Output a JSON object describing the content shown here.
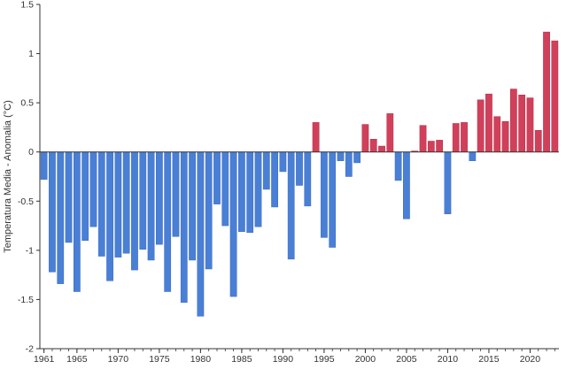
{
  "chart_data": {
    "type": "bar",
    "title": "",
    "xlabel": "",
    "ylabel": "Temperatura Media - Anomalia (°C)",
    "ylim": [
      -2,
      1.5
    ],
    "yticks": [
      -2,
      -1.5,
      -1,
      -0.5,
      0,
      0.5,
      1,
      1.5
    ],
    "ytick_labels": [
      "-2",
      "-1.5",
      "-1",
      "-0.5",
      "0",
      "0.5",
      "1",
      "1.5"
    ],
    "xlim": [
      1960.5,
      2023.5
    ],
    "xticks": [
      1961,
      1965,
      1970,
      1975,
      1980,
      1985,
      1990,
      1995,
      2000,
      2005,
      2010,
      2015,
      2020
    ],
    "xtick_labels": [
      "1961",
      "1965",
      "1970",
      "1975",
      "1980",
      "1985",
      "1990",
      "1995",
      "2000",
      "2005",
      "2010",
      "2015",
      "2020"
    ],
    "grid": false,
    "legend": "none",
    "colors": {
      "positive": "#d1405a",
      "negative": "#4a7fd6",
      "axis": "#333333"
    },
    "x": [
      1961,
      1962,
      1963,
      1964,
      1965,
      1966,
      1967,
      1968,
      1969,
      1970,
      1971,
      1972,
      1973,
      1974,
      1975,
      1976,
      1977,
      1978,
      1979,
      1980,
      1981,
      1982,
      1983,
      1984,
      1985,
      1986,
      1987,
      1988,
      1989,
      1990,
      1991,
      1992,
      1993,
      1994,
      1995,
      1996,
      1997,
      1998,
      1999,
      2000,
      2001,
      2002,
      2003,
      2004,
      2005,
      2006,
      2007,
      2008,
      2009,
      2010,
      2011,
      2012,
      2013,
      2014,
      2015,
      2016,
      2017,
      2018,
      2019,
      2020,
      2021,
      2022,
      2023
    ],
    "values": [
      -0.28,
      -1.22,
      -1.34,
      -0.92,
      -1.42,
      -0.9,
      -0.76,
      -1.06,
      -1.31,
      -1.07,
      -1.03,
      -1.2,
      -0.99,
      -1.1,
      -0.94,
      -1.42,
      -0.86,
      -1.53,
      -1.1,
      -1.67,
      -1.19,
      -0.53,
      -0.75,
      -1.47,
      -0.81,
      -0.82,
      -0.76,
      -0.38,
      -0.56,
      -0.2,
      -1.09,
      -0.34,
      -0.55,
      0.3,
      -0.87,
      -0.97,
      -0.09,
      -0.25,
      -0.11,
      0.28,
      0.13,
      0.06,
      0.39,
      -0.29,
      -0.68,
      0.01,
      0.27,
      0.11,
      0.12,
      -0.63,
      0.29,
      0.3,
      -0.09,
      0.53,
      0.59,
      0.36,
      0.31,
      0.64,
      0.58,
      0.55,
      0.22,
      1.22,
      1.13
    ]
  }
}
